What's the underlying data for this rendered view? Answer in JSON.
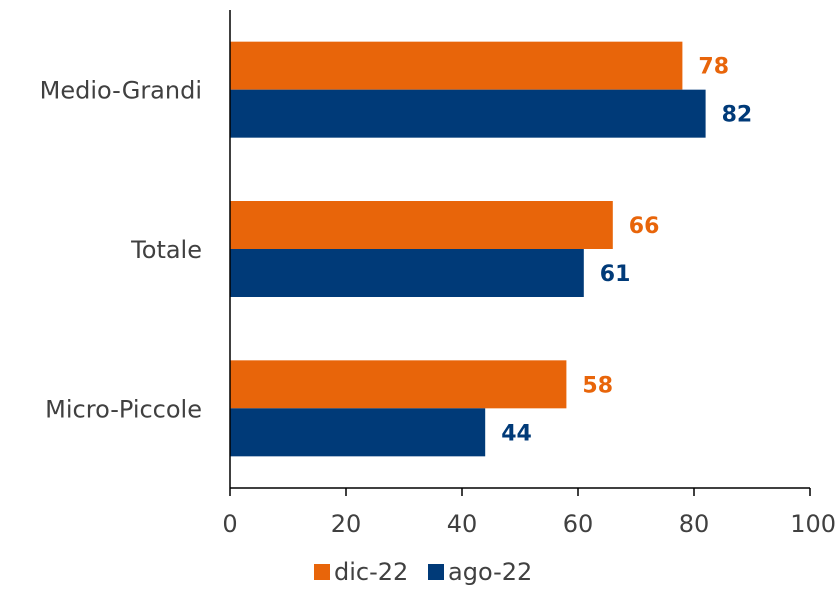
{
  "chart_data": {
    "type": "bar",
    "orientation": "horizontal",
    "title": "",
    "xlabel": "",
    "ylabel": "",
    "categories": [
      "Medio-Grandi",
      "Totale",
      "Micro-Piccole"
    ],
    "series": [
      {
        "name": "dic-22",
        "color": "#E8650A",
        "values": [
          78,
          66,
          58
        ]
      },
      {
        "name": "ago-22",
        "color": "#003A78",
        "values": [
          82,
          61,
          44
        ]
      }
    ],
    "xlim": [
      0,
      100
    ],
    "xticks": [
      0,
      20,
      40,
      60,
      80,
      100
    ],
    "grid": false,
    "legend_position": "bottom"
  }
}
